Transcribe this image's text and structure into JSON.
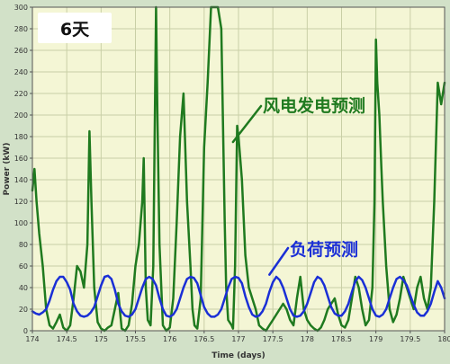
{
  "badge": {
    "text": "6天"
  },
  "chart_data": {
    "type": "line",
    "xlabel": "Time (days)",
    "ylabel": "Power (kW)",
    "xlim": [
      174,
      180
    ],
    "ylim": [
      0,
      300
    ],
    "x_ticks": [
      "174",
      "174.5",
      "175",
      "175.5",
      "176",
      "176.5",
      "177",
      "177.5",
      "178",
      "178.5",
      "179",
      "179.5",
      "180"
    ],
    "y_ticks": [
      "0",
      "20",
      "40",
      "60",
      "80",
      "100",
      "120",
      "140",
      "160",
      "180",
      "200",
      "220",
      "240",
      "260",
      "280",
      "300"
    ],
    "grid": true,
    "series": [
      {
        "name": "风电发电预测",
        "color": "#1f7a1f",
        "x": [
          174.0,
          174.03,
          174.06,
          174.1,
          174.15,
          174.2,
          174.25,
          174.3,
          174.35,
          174.4,
          174.45,
          174.5,
          174.55,
          174.6,
          174.65,
          174.7,
          174.75,
          174.8,
          174.83,
          174.86,
          174.9,
          174.95,
          175.0,
          175.05,
          175.1,
          175.15,
          175.2,
          175.25,
          175.3,
          175.35,
          175.4,
          175.45,
          175.5,
          175.55,
          175.6,
          175.62,
          175.65,
          175.68,
          175.72,
          175.76,
          175.8,
          175.82,
          175.85,
          175.9,
          175.95,
          176.0,
          176.05,
          176.1,
          176.15,
          176.2,
          176.25,
          176.3,
          176.33,
          176.36,
          176.4,
          176.45,
          176.5,
          176.55,
          176.6,
          176.62,
          176.65,
          176.7,
          176.75,
          176.8,
          176.82,
          176.85,
          176.9,
          176.92,
          176.95,
          176.98,
          177.0,
          177.05,
          177.1,
          177.15,
          177.2,
          177.25,
          177.3,
          177.35,
          177.4,
          177.45,
          177.5,
          177.55,
          177.6,
          177.65,
          177.7,
          177.75,
          177.8,
          177.85,
          177.9,
          177.95,
          178.0,
          178.05,
          178.1,
          178.15,
          178.2,
          178.25,
          178.3,
          178.35,
          178.4,
          178.45,
          178.5,
          178.55,
          178.6,
          178.65,
          178.7,
          178.75,
          178.8,
          178.85,
          178.9,
          178.95,
          178.98,
          179.0,
          179.02,
          179.05,
          179.08,
          179.1,
          179.15,
          179.2,
          179.25,
          179.3,
          179.35,
          179.4,
          179.45,
          179.5,
          179.55,
          179.6,
          179.65,
          179.7,
          179.75,
          179.8,
          179.85,
          179.9,
          179.95,
          180.0
        ],
        "values": [
          130,
          150,
          120,
          90,
          60,
          20,
          5,
          2,
          8,
          15,
          3,
          0,
          5,
          30,
          60,
          55,
          40,
          80,
          185,
          120,
          40,
          8,
          2,
          0,
          3,
          5,
          20,
          35,
          2,
          0,
          5,
          25,
          60,
          80,
          120,
          160,
          40,
          10,
          5,
          60,
          300,
          200,
          80,
          5,
          0,
          3,
          30,
          100,
          180,
          220,
          120,
          60,
          20,
          5,
          2,
          30,
          170,
          230,
          300,
          300,
          300,
          300,
          280,
          100,
          40,
          10,
          5,
          2,
          60,
          190,
          180,
          140,
          70,
          40,
          30,
          20,
          5,
          2,
          0,
          5,
          10,
          15,
          20,
          25,
          20,
          10,
          5,
          30,
          50,
          20,
          10,
          5,
          2,
          0,
          3,
          10,
          20,
          25,
          30,
          15,
          5,
          3,
          10,
          30,
          50,
          40,
          20,
          5,
          10,
          40,
          120,
          270,
          230,
          200,
          150,
          120,
          60,
          20,
          8,
          15,
          30,
          50,
          40,
          30,
          20,
          40,
          50,
          30,
          20,
          40,
          120,
          230,
          210,
          230
        ]
      },
      {
        "name": "负荷预测",
        "color": "#1a2fd6",
        "x": [
          174.0,
          174.05,
          174.1,
          174.15,
          174.2,
          174.25,
          174.3,
          174.35,
          174.4,
          174.45,
          174.5,
          174.55,
          174.6,
          174.65,
          174.7,
          174.75,
          174.8,
          174.85,
          174.9,
          174.95,
          175.0,
          175.05,
          175.1,
          175.15,
          175.2,
          175.25,
          175.3,
          175.35,
          175.4,
          175.45,
          175.5,
          175.55,
          175.6,
          175.65,
          175.7,
          175.75,
          175.8,
          175.85,
          175.9,
          175.95,
          176.0,
          176.05,
          176.1,
          176.15,
          176.2,
          176.25,
          176.3,
          176.35,
          176.4,
          176.45,
          176.5,
          176.55,
          176.6,
          176.65,
          176.7,
          176.75,
          176.8,
          176.85,
          176.9,
          176.95,
          177.0,
          177.05,
          177.1,
          177.15,
          177.2,
          177.25,
          177.3,
          177.35,
          177.4,
          177.45,
          177.5,
          177.55,
          177.6,
          177.65,
          177.7,
          177.75,
          177.8,
          177.85,
          177.9,
          177.95,
          178.0,
          178.05,
          178.1,
          178.15,
          178.2,
          178.25,
          178.3,
          178.35,
          178.4,
          178.45,
          178.5,
          178.55,
          178.6,
          178.65,
          178.7,
          178.75,
          178.8,
          178.85,
          178.9,
          178.95,
          179.0,
          179.05,
          179.1,
          179.15,
          179.2,
          179.25,
          179.3,
          179.35,
          179.4,
          179.45,
          179.5,
          179.55,
          179.6,
          179.65,
          179.7,
          179.75,
          179.8,
          179.85,
          179.9,
          179.95,
          180.0
        ],
        "values": [
          18,
          16,
          15,
          17,
          20,
          28,
          38,
          46,
          50,
          50,
          45,
          38,
          25,
          18,
          14,
          13,
          14,
          17,
          22,
          32,
          42,
          50,
          51,
          48,
          38,
          25,
          18,
          14,
          13,
          15,
          20,
          30,
          40,
          48,
          50,
          48,
          42,
          30,
          20,
          14,
          13,
          15,
          20,
          30,
          40,
          48,
          50,
          49,
          44,
          33,
          22,
          16,
          13,
          13,
          15,
          20,
          30,
          40,
          48,
          50,
          49,
          44,
          32,
          22,
          15,
          13,
          14,
          18,
          25,
          36,
          45,
          50,
          47,
          40,
          30,
          20,
          14,
          13,
          14,
          18,
          25,
          35,
          45,
          50,
          48,
          42,
          32,
          22,
          16,
          14,
          14,
          18,
          25,
          36,
          46,
          50,
          47,
          40,
          30,
          20,
          14,
          13,
          15,
          20,
          30,
          40,
          48,
          50,
          47,
          42,
          33,
          24,
          17,
          14,
          14,
          18,
          25,
          36,
          46,
          40,
          30
        ]
      }
    ]
  }
}
